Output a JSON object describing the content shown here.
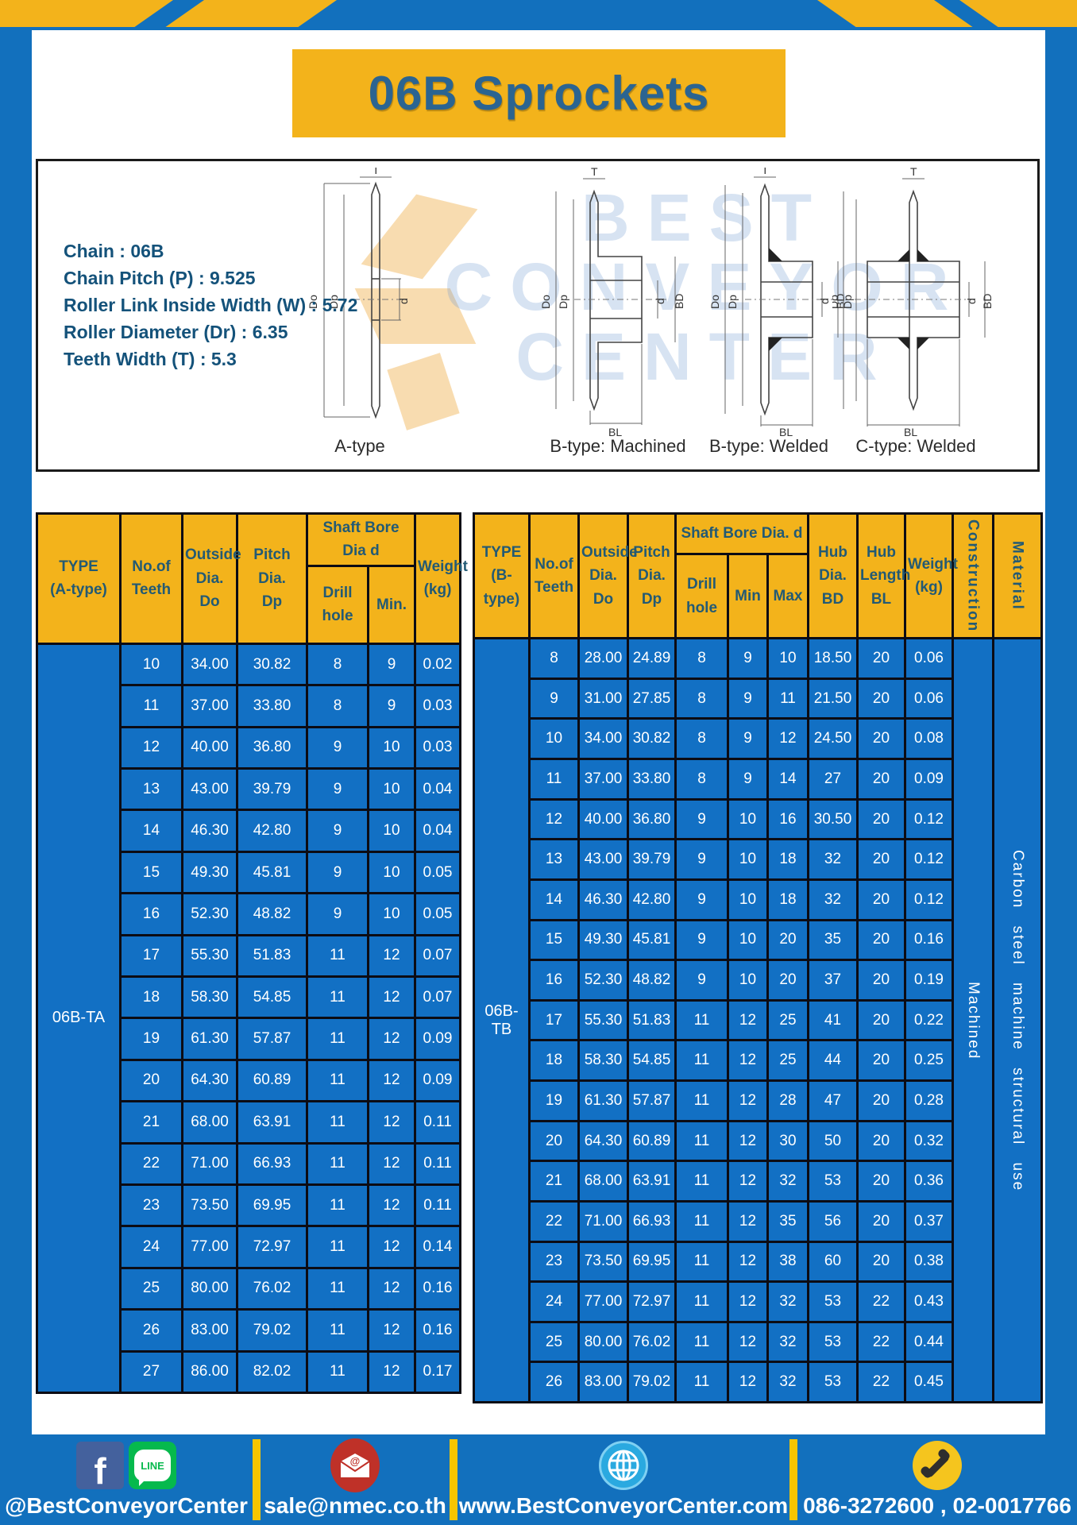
{
  "page": {
    "title": "06B Sprockets"
  },
  "colors": {
    "blue": "#1270bd",
    "table_blue": "#1270c4",
    "yellow": "#f3b31b",
    "header_text": "#235a74",
    "title_text": "#2b6491",
    "border": "#0c0c14",
    "footer_divider": "#f7c500"
  },
  "watermark": "BEST\nCONVEYOR\nCENTER",
  "specs": [
    "Chain  :  06B",
    "Chain Pitch (P)  :  9.525",
    "Roller Link Inside Width (W)  :  5.72",
    "Roller Diameter (Dr)  :  6.35",
    "Teeth Width (T)  :  5.3"
  ],
  "diagram": {
    "types": [
      "A-type",
      "B-type: Machined",
      "B-type: Welded",
      "C-type: Welded"
    ],
    "dims": {
      "t": "T",
      "do": "Do",
      "dp": "Dp",
      "d": "d",
      "bd": "BD",
      "bl": "BL"
    }
  },
  "tables": {
    "a": {
      "type": "06B-TA",
      "headers": {
        "type": "TYPE\n(A-type)",
        "teeth": "No.of\nTeeth",
        "outside": "Outside\nDia.\nDo",
        "pitch": "Pitch Dia.\nDp",
        "shaft": "Shaft Bore Dia d",
        "drill": "Drill hole",
        "min": "Min.",
        "weight": "Weight\n(kg)"
      },
      "rows": [
        [
          "10",
          "34.00",
          "30.82",
          "8",
          "9",
          "0.02"
        ],
        [
          "11",
          "37.00",
          "33.80",
          "8",
          "9",
          "0.03"
        ],
        [
          "12",
          "40.00",
          "36.80",
          "9",
          "10",
          "0.03"
        ],
        [
          "13",
          "43.00",
          "39.79",
          "9",
          "10",
          "0.04"
        ],
        [
          "14",
          "46.30",
          "42.80",
          "9",
          "10",
          "0.04"
        ],
        [
          "15",
          "49.30",
          "45.81",
          "9",
          "10",
          "0.05"
        ],
        [
          "16",
          "52.30",
          "48.82",
          "9",
          "10",
          "0.05"
        ],
        [
          "17",
          "55.30",
          "51.83",
          "11",
          "12",
          "0.07"
        ],
        [
          "18",
          "58.30",
          "54.85",
          "11",
          "12",
          "0.07"
        ],
        [
          "19",
          "61.30",
          "57.87",
          "11",
          "12",
          "0.09"
        ],
        [
          "20",
          "64.30",
          "60.89",
          "11",
          "12",
          "0.09"
        ],
        [
          "21",
          "68.00",
          "63.91",
          "11",
          "12",
          "0.11"
        ],
        [
          "22",
          "71.00",
          "66.93",
          "11",
          "12",
          "0.11"
        ],
        [
          "23",
          "73.50",
          "69.95",
          "11",
          "12",
          "0.11"
        ],
        [
          "24",
          "77.00",
          "72.97",
          "11",
          "12",
          "0.14"
        ],
        [
          "25",
          "80.00",
          "76.02",
          "11",
          "12",
          "0.16"
        ],
        [
          "26",
          "83.00",
          "79.02",
          "11",
          "12",
          "0.16"
        ],
        [
          "27",
          "86.00",
          "82.02",
          "11",
          "12",
          "0.17"
        ]
      ]
    },
    "b": {
      "type": "06B-TB",
      "headers": {
        "type": "TYPE\n(B-type)",
        "teeth": "No.of\nTeeth",
        "outside": "Outside\nDia.\nDo",
        "pitch": "Pitch\nDia.\nDp",
        "shaft": "Shaft Bore Dia.  d",
        "drill": "Drill hole",
        "min": "Min",
        "max": "Max",
        "hub_dia": "Hub\nDia.\nBD",
        "hub_len": "Hub\nLength\nBL",
        "weight": "Weight\n(kg)",
        "construction": "Construction",
        "material": "Material"
      },
      "construction": "Machined",
      "material": "Carbon steel machine structural use",
      "rows": [
        [
          "8",
          "28.00",
          "24.89",
          "8",
          "9",
          "10",
          "18.50",
          "20",
          "0.06"
        ],
        [
          "9",
          "31.00",
          "27.85",
          "8",
          "9",
          "11",
          "21.50",
          "20",
          "0.06"
        ],
        [
          "10",
          "34.00",
          "30.82",
          "8",
          "9",
          "12",
          "24.50",
          "20",
          "0.08"
        ],
        [
          "11",
          "37.00",
          "33.80",
          "8",
          "9",
          "14",
          "27",
          "20",
          "0.09"
        ],
        [
          "12",
          "40.00",
          "36.80",
          "9",
          "10",
          "16",
          "30.50",
          "20",
          "0.12"
        ],
        [
          "13",
          "43.00",
          "39.79",
          "9",
          "10",
          "18",
          "32",
          "20",
          "0.12"
        ],
        [
          "14",
          "46.30",
          "42.80",
          "9",
          "10",
          "18",
          "32",
          "20",
          "0.12"
        ],
        [
          "15",
          "49.30",
          "45.81",
          "9",
          "10",
          "20",
          "35",
          "20",
          "0.16"
        ],
        [
          "16",
          "52.30",
          "48.82",
          "9",
          "10",
          "20",
          "37",
          "20",
          "0.19"
        ],
        [
          "17",
          "55.30",
          "51.83",
          "11",
          "12",
          "25",
          "41",
          "20",
          "0.22"
        ],
        [
          "18",
          "58.30",
          "54.85",
          "11",
          "12",
          "25",
          "44",
          "20",
          "0.25"
        ],
        [
          "19",
          "61.30",
          "57.87",
          "11",
          "12",
          "28",
          "47",
          "20",
          "0.28"
        ],
        [
          "20",
          "64.30",
          "60.89",
          "11",
          "12",
          "30",
          "50",
          "20",
          "0.32"
        ],
        [
          "21",
          "68.00",
          "63.91",
          "11",
          "12",
          "32",
          "53",
          "20",
          "0.36"
        ],
        [
          "22",
          "71.00",
          "66.93",
          "11",
          "12",
          "35",
          "56",
          "20",
          "0.37"
        ],
        [
          "23",
          "73.50",
          "69.95",
          "11",
          "12",
          "38",
          "60",
          "20",
          "0.38"
        ],
        [
          "24",
          "77.00",
          "72.97",
          "11",
          "12",
          "32",
          "53",
          "22",
          "0.43"
        ],
        [
          "25",
          "80.00",
          "76.02",
          "11",
          "12",
          "32",
          "53",
          "22",
          "0.44"
        ],
        [
          "26",
          "83.00",
          "79.02",
          "11",
          "12",
          "32",
          "53",
          "22",
          "0.45"
        ]
      ]
    }
  },
  "footer": {
    "facebook_label": "f",
    "line_label": "LINE",
    "social_handle": "@BestConveyorCenter",
    "email": "sale@nmec.co.th",
    "website": "www.BestConveyorCenter.com",
    "phones": "086-3272600 , 02-0017766"
  }
}
